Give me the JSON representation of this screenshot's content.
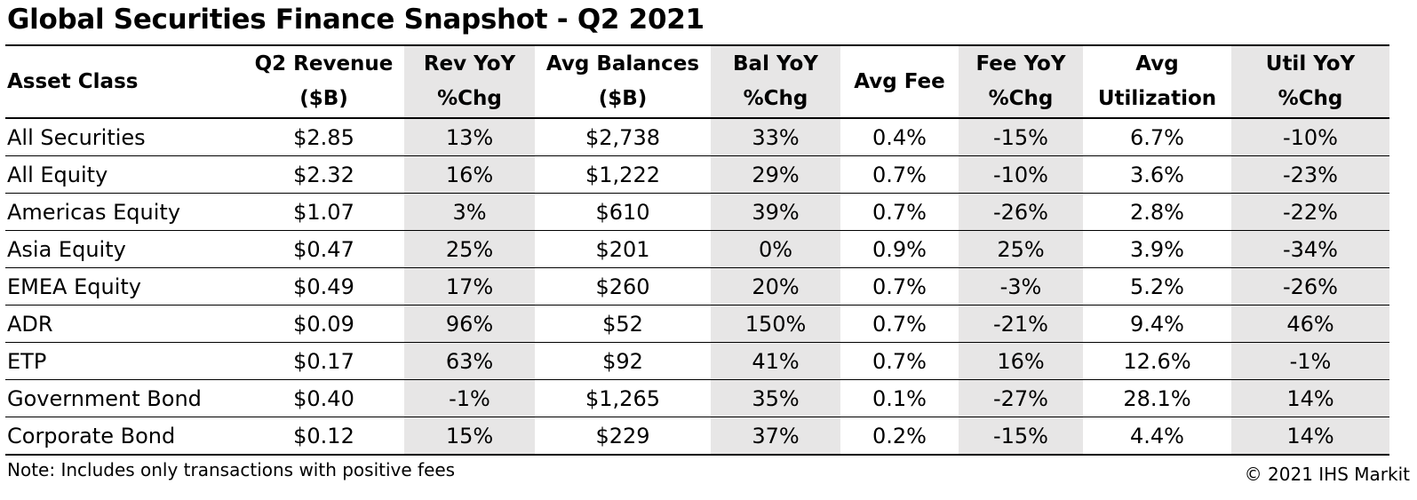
{
  "title": "Global Securities Finance Snapshot - Q2 2021",
  "headers": [
    [
      "Asset Class"
    ],
    [
      "Q2 Revenue",
      "($B)"
    ],
    [
      "Rev YoY",
      "%Chg"
    ],
    [
      "Avg Balances",
      "($B)"
    ],
    [
      "Bal YoY",
      "%Chg"
    ],
    [
      "Avg Fee"
    ],
    [
      "Fee YoY",
      "%Chg"
    ],
    [
      "Avg",
      "Utilization"
    ],
    [
      "Util YoY",
      "%Chg"
    ]
  ],
  "rows": [
    [
      "All Securities",
      "$2.85",
      "13%",
      "$2,738",
      "33%",
      "0.4%",
      "-15%",
      "6.7%",
      "-10%"
    ],
    [
      "All Equity",
      "$2.32",
      "16%",
      "$1,222",
      "29%",
      "0.7%",
      "-10%",
      "3.6%",
      "-23%"
    ],
    [
      "Americas Equity",
      "$1.07",
      "3%",
      "$610",
      "39%",
      "0.7%",
      "-26%",
      "2.8%",
      "-22%"
    ],
    [
      "Asia Equity",
      "$0.47",
      "25%",
      "$201",
      "0%",
      "0.9%",
      "25%",
      "3.9%",
      "-34%"
    ],
    [
      "EMEA Equity",
      "$0.49",
      "17%",
      "$260",
      "20%",
      "0.7%",
      "-3%",
      "5.2%",
      "-26%"
    ],
    [
      "ADR",
      "$0.09",
      "96%",
      "$52",
      "150%",
      "0.7%",
      "-21%",
      "9.4%",
      "46%"
    ],
    [
      "ETP",
      "$0.17",
      "63%",
      "$92",
      "41%",
      "0.7%",
      "16%",
      "12.6%",
      "-1%"
    ],
    [
      "Government Bond",
      "$0.40",
      "-1%",
      "$1,265",
      "35%",
      "0.1%",
      "-27%",
      "28.1%",
      "14%"
    ],
    [
      "Corporate Bond",
      "$0.12",
      "15%",
      "$229",
      "37%",
      "0.2%",
      "-15%",
      "4.4%",
      "14%"
    ]
  ],
  "shaded_columns": [
    2,
    4,
    6,
    8
  ],
  "shade_color": "#e7e6e6",
  "note": "Note: Includes only transactions with positive fees",
  "copyright": "© 2021 IHS Markit"
}
